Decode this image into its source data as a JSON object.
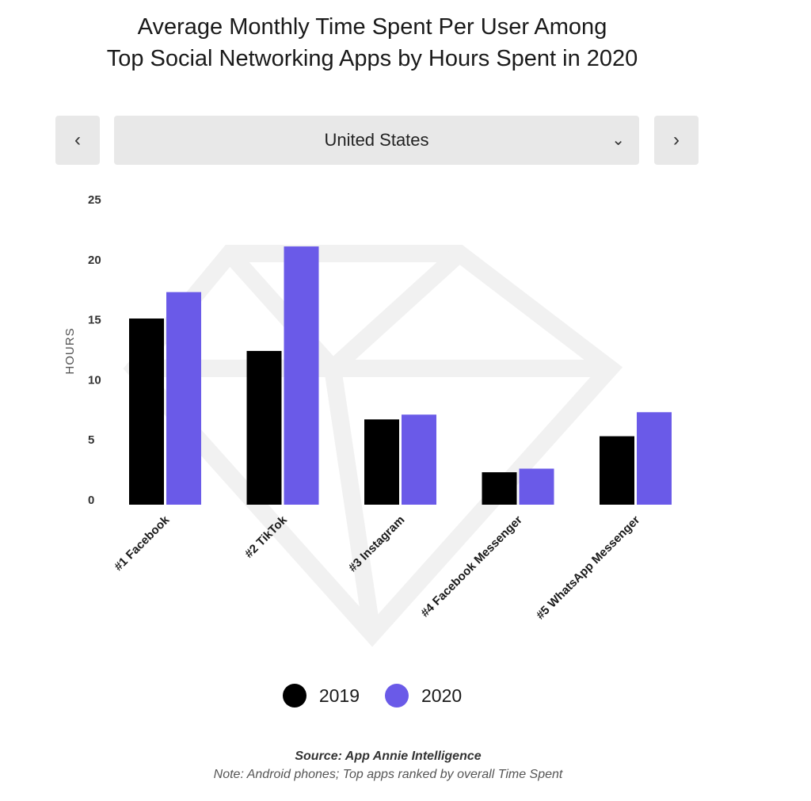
{
  "title_lines": [
    "Average Monthly Time Spent Per User Among",
    "Top Social Networking Apps by Hours Spent in 2020"
  ],
  "selector": {
    "value": "United States",
    "prev_icon": "chevron-left-icon",
    "next_icon": "chevron-right-icon",
    "dropdown_icon": "chevron-down-icon"
  },
  "footer": {
    "source": "Source: App Annie Intelligence",
    "note": "Note: Android phones; Top apps ranked by overall Time Spent"
  },
  "chart_data": {
    "type": "bar",
    "title": "",
    "xlabel": "",
    "ylabel": "HOURS",
    "ylim": [
      0,
      25
    ],
    "yticks": [
      0,
      5,
      10,
      15,
      20,
      25
    ],
    "grid": false,
    "legend_position": "bottom",
    "categories": [
      "#1 Facebook",
      "#2 TikTok",
      "#3 Instagram",
      "#4 Facebook Messenger",
      "#5 WhatsApp Messenger"
    ],
    "series": [
      {
        "name": "2019",
        "color": "#000000",
        "values": [
          15.5,
          12.8,
          7.1,
          2.7,
          5.7
        ]
      },
      {
        "name": "2020",
        "color": "#6a5ae8",
        "values": [
          17.7,
          21.5,
          7.5,
          3.0,
          7.7
        ]
      }
    ]
  }
}
